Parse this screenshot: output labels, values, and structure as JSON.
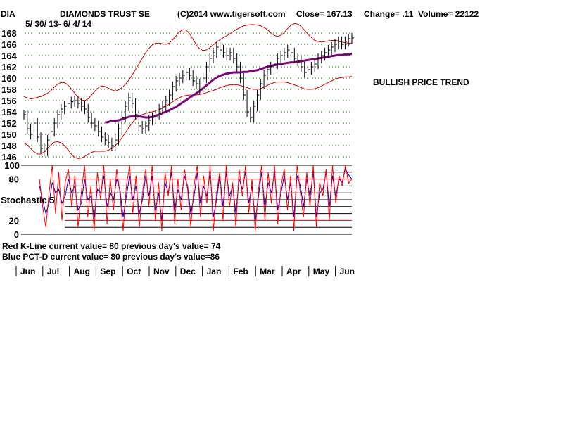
{
  "header": {
    "ticker": "DIA",
    "name": "DIAMONDS TRUST SE",
    "copyright": "(C)2014 www.tigersoft.com",
    "close": "Close=  167.13",
    "change": "Change= .11",
    "volume": "Volume= 22122",
    "date_range": "5/ 30/ 13- 6/ 4/ 14"
  },
  "annotation": "BULLISH PRICE TREND",
  "indicator": {
    "label": "Stochastic  5",
    "red_line_text": "Red K-Line current value= 80 previous day's value= 74",
    "blue_line_text": "Blue PCT-D current value= 80 previous day's value=86"
  },
  "colors": {
    "bands": "#d40000",
    "moving_average": "#800080",
    "k_line": "#ff0000",
    "d_line": "#0000cc",
    "grid": "#008000"
  },
  "chart_data": [
    {
      "type": "ohlc-bar",
      "yticks": [
        146,
        148,
        150,
        152,
        154,
        156,
        158,
        160,
        162,
        164,
        166,
        168
      ],
      "ylim": [
        145,
        169
      ],
      "months": [
        "Jun",
        "Jul",
        "Aug",
        "Sep",
        "Oct",
        "Nov",
        "Dec",
        "Jan",
        "Feb",
        "Mar",
        "Apr",
        "May",
        "Jun"
      ],
      "close_series": [
        153.5,
        151,
        150,
        152,
        149.5,
        147.5,
        147,
        149,
        150.5,
        152,
        153.5,
        154.5,
        155,
        155.5,
        155.8,
        156,
        155.5,
        155,
        154.5,
        153,
        152,
        151.5,
        150.5,
        149.5,
        149,
        148.5,
        148,
        149,
        151,
        153,
        155,
        156.5,
        155.5,
        153.5,
        151.5,
        151,
        151.5,
        152.5,
        153,
        153.5,
        154.5,
        155,
        156,
        157,
        158.5,
        159.5,
        160,
        160.5,
        161,
        160.5,
        159.5,
        159,
        158,
        160,
        162,
        163.5,
        164.5,
        165.5,
        165,
        164.5,
        164,
        164.5,
        163.5,
        162,
        160,
        157,
        154,
        153,
        155,
        157,
        159,
        160.5,
        161.5,
        162,
        162.5,
        163.5,
        164,
        164.5,
        165,
        164.5,
        163.5,
        163,
        162,
        161,
        161.5,
        162,
        162.5,
        163.5,
        164,
        164.5,
        165,
        165.5,
        166,
        166.5,
        166,
        166.5,
        167,
        167.13
      ],
      "moving_average": [
        null,
        null,
        null,
        null,
        null,
        null,
        null,
        null,
        null,
        null,
        null,
        null,
        null,
        null,
        null,
        null,
        null,
        null,
        null,
        null,
        null,
        null,
        null,
        null,
        152.1,
        152.2,
        152.4,
        152.4,
        152.5,
        152.7,
        152.9,
        153.1,
        153.2,
        153.2,
        153.2,
        153.1,
        153.0,
        153.0,
        153.1,
        153.3,
        153.5,
        153.8,
        154.0,
        154.3,
        154.6,
        154.9,
        155.3,
        155.7,
        156.1,
        156.5,
        156.9,
        157.3,
        157.7,
        158.2,
        158.7,
        159.2,
        159.7,
        160.1,
        160.4,
        160.6,
        160.8,
        160.9,
        161.0,
        161.0,
        161.0,
        161.1,
        161.1,
        161.2,
        161.3,
        161.4,
        161.6,
        161.8,
        162.0,
        162.2,
        162.3,
        162.4,
        162.5,
        162.6,
        162.7,
        162.8,
        162.8,
        162.9,
        163.0,
        163.1,
        163.2,
        163.3,
        163.4,
        163.5,
        163.6,
        163.7,
        163.8,
        163.9,
        164.0,
        164.1,
        164.1,
        164.2,
        164.2,
        164.3
      ],
      "upper_band": [
        156.7,
        156.5,
        156.3,
        156.4,
        156.6,
        156.7,
        157.0,
        157.3,
        157.8,
        158.4,
        158.9,
        159.2,
        159.2,
        158.8,
        158.1,
        157.3,
        156.6,
        156.1,
        156.0,
        156.3,
        157.0,
        157.7,
        158.3,
        158.6,
        158.5,
        158.2,
        157.9,
        157.7,
        157.9,
        158.3,
        158.9,
        159.6,
        160.5,
        161.5,
        162.5,
        163.5,
        164.5,
        165.3,
        165.9,
        166.2,
        166.2,
        166.1,
        166.0,
        166.2,
        166.8,
        167.5,
        168.2,
        168.6,
        168.5,
        167.9,
        166.9,
        165.9,
        165.2,
        164.9,
        165.0,
        165.4,
        165.9,
        166.4,
        166.8,
        167.2,
        167.5,
        167.9,
        168.3,
        168.7,
        169.0,
        169.3,
        169.4,
        169.5,
        169.5,
        169.4,
        169.3,
        169.0,
        168.6,
        168.1,
        167.6,
        167.4,
        167.6,
        168.1,
        168.8,
        169.4,
        169.7,
        169.6,
        169.2,
        168.5,
        167.8,
        167.2,
        166.7,
        166.5,
        166.4,
        166.5,
        166.6,
        166.7,
        166.7,
        166.6,
        166.4,
        166.3,
        166.2,
        166.2
      ],
      "lower_band": [
        148.5,
        148.1,
        147.5,
        146.9,
        146.5,
        146.5,
        146.9,
        147.5,
        148.1,
        148.6,
        148.7,
        148.5,
        148.0,
        147.3,
        146.5,
        145.9,
        145.7,
        145.8,
        146.1,
        146.5,
        146.8,
        147.0,
        147.0,
        147.0,
        147.0,
        147.2,
        147.5,
        148.0,
        148.6,
        149.4,
        150.3,
        151.2,
        152.0,
        152.7,
        153.2,
        153.5,
        153.7,
        153.9,
        154.0,
        154.2,
        154.4,
        154.7,
        155.0,
        155.4,
        155.8,
        156.2,
        156.5,
        156.8,
        156.9,
        157.0,
        157.0,
        157.0,
        157.1,
        157.2,
        157.4,
        157.6,
        157.8,
        158.0,
        158.3,
        158.5,
        158.7,
        158.8,
        158.8,
        158.8,
        158.7,
        158.5,
        158.3,
        158.1,
        158.0,
        158.0,
        158.1,
        158.4,
        158.7,
        159.0,
        159.2,
        159.3,
        159.3,
        159.3,
        159.2,
        159.0,
        158.8,
        158.6,
        158.3,
        158.1,
        158.0,
        158.0,
        158.1,
        158.3,
        158.6,
        158.9,
        159.2,
        159.5,
        159.8,
        160.0,
        160.1,
        160.2,
        160.2,
        160.3
      ]
    },
    {
      "type": "line",
      "title": "Stochastic  5",
      "yticks": [
        0,
        20,
        80,
        100
      ],
      "ylim": [
        0,
        100
      ],
      "series": [
        {
          "name": "Red K-Line",
          "values": [
            80,
            40,
            10,
            60,
            100,
            30,
            90,
            20,
            75,
            95,
            40,
            85,
            10,
            60,
            100,
            25,
            70,
            5,
            90,
            50,
            100,
            15,
            80,
            35,
            95,
            60,
            5,
            70,
            100,
            30,
            85,
            10,
            60,
            95,
            40,
            100,
            20,
            75,
            5,
            90,
            55,
            100,
            15,
            80,
            35,
            95,
            65,
            10,
            70,
            100,
            25,
            85,
            45,
            100,
            5,
            60,
            90,
            20,
            100,
            40,
            75,
            10,
            95,
            55,
            100,
            30,
            80,
            5,
            65,
            100,
            20,
            90,
            45,
            100,
            15,
            70,
            95,
            35,
            85,
            5,
            100,
            60,
            25,
            90,
            40,
            100,
            10,
            75,
            55,
            95,
            20,
            100,
            45,
            85,
            70,
            100,
            74,
            80
          ]
        },
        {
          "name": "Blue PCT-D",
          "values": [
            70,
            50,
            30,
            45,
            75,
            60,
            65,
            45,
            55,
            80,
            60,
            70,
            35,
            45,
            80,
            50,
            55,
            25,
            65,
            60,
            85,
            40,
            60,
            50,
            80,
            65,
            25,
            55,
            85,
            50,
            70,
            30,
            50,
            85,
            55,
            85,
            35,
            60,
            20,
            75,
            60,
            90,
            35,
            65,
            50,
            85,
            70,
            30,
            55,
            90,
            45,
            70,
            55,
            90,
            25,
            50,
            85,
            40,
            90,
            55,
            70,
            30,
            80,
            65,
            90,
            45,
            70,
            20,
            55,
            90,
            40,
            75,
            60,
            90,
            35,
            60,
            85,
            50,
            75,
            25,
            85,
            70,
            40,
            80,
            55,
            90,
            25,
            60,
            65,
            90,
            40,
            85,
            55,
            80,
            75,
            95,
            86,
            80
          ]
        }
      ]
    }
  ]
}
